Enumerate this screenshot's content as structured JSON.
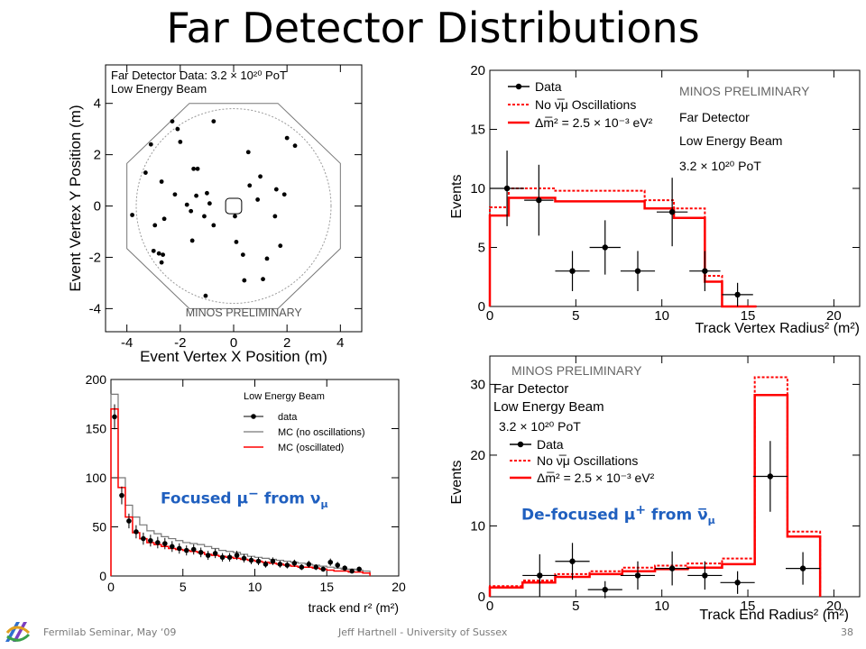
{
  "title": "Far Detector Distributions",
  "footer": {
    "left": "Fermilab Seminar, May ‘09",
    "center": "Jeff Hartnell - University of Sussex",
    "page": "38"
  },
  "captions": {
    "focused_pre": "Focused μ",
    "focused_sup": "−",
    "focused_mid": " from ν",
    "focused_sub": "μ",
    "defocused_pre": "De-focused μ",
    "defocused_sup": "+",
    "defocused_mid": " from ν̅",
    "defocused_sub": "μ"
  },
  "colors": {
    "data": "#000000",
    "mc_osc": "#ff0000",
    "mc_noosc": "#ff0000",
    "mc_grey": "#777777",
    "caption": "#1f5fbf"
  },
  "chart_data": [
    {
      "id": "vertex_xy",
      "type": "scatter",
      "xlabel": "Event Vertex X Position (m)",
      "ylabel": "Event Vertex Y Position (m)",
      "xlim": [
        -4.8,
        4.8
      ],
      "ylim": [
        -4.9,
        5.5
      ],
      "xticks": [
        -4,
        -2,
        0,
        2,
        4
      ],
      "yticks": [
        -4,
        -2,
        0,
        2,
        4
      ],
      "annotations": [
        "Far Detector Data: 3.2 × 10²⁰ PoT",
        "Low Energy Beam",
        "MINOS PRELIMINARY"
      ],
      "points": [
        [
          -2.3,
          3.3
        ],
        [
          -2.1,
          3.0
        ],
        [
          -0.75,
          3.3
        ],
        [
          -3.1,
          2.4
        ],
        [
          -2.0,
          2.5
        ],
        [
          0.55,
          2.1
        ],
        [
          2.0,
          2.65
        ],
        [
          2.3,
          2.35
        ],
        [
          -3.3,
          1.3
        ],
        [
          -1.5,
          1.45
        ],
        [
          -1.35,
          1.45
        ],
        [
          1.0,
          1.15
        ],
        [
          -2.7,
          0.95
        ],
        [
          -1.4,
          0.4
        ],
        [
          -1.0,
          0.5
        ],
        [
          -2.2,
          0.45
        ],
        [
          -1.75,
          0.05
        ],
        [
          -0.9,
          0.1
        ],
        [
          0.9,
          0.25
        ],
        [
          0.6,
          0.8
        ],
        [
          1.6,
          0.65
        ],
        [
          1.9,
          0.45
        ],
        [
          -3.8,
          -0.35
        ],
        [
          -2.6,
          -0.5
        ],
        [
          -1.6,
          -0.2
        ],
        [
          -1.1,
          -0.4
        ],
        [
          0.05,
          -0.4
        ],
        [
          1.55,
          -0.4
        ],
        [
          -2.95,
          -0.75
        ],
        [
          -0.75,
          -0.75
        ],
        [
          -1.55,
          -1.35
        ],
        [
          0.1,
          -1.4
        ],
        [
          1.75,
          -1.55
        ],
        [
          -3.0,
          -1.75
        ],
        [
          -2.8,
          -1.85
        ],
        [
          -2.65,
          -1.9
        ],
        [
          0.35,
          -1.9
        ],
        [
          1.25,
          -2.05
        ],
        [
          -2.7,
          -2.2
        ],
        [
          0.4,
          -2.9
        ],
        [
          -1.05,
          -3.5
        ],
        [
          1.1,
          -2.85
        ]
      ]
    },
    {
      "id": "track_vertex_radius",
      "type": "histogram",
      "xlabel": "Track Vertex Radius² (m²)",
      "ylabel": "Events",
      "xlim": [
        0,
        21.5
      ],
      "ylim": [
        0,
        20
      ],
      "xticks": [
        0,
        5,
        10,
        15,
        20
      ],
      "yticks": [
        0,
        5,
        10,
        15,
        20
      ],
      "legend": [
        "Data",
        "No ν̅μ Oscillations",
        "Δm̅² = 2.5 × 10⁻³ eV²"
      ],
      "annotations": [
        "MINOS PRELIMINARY",
        "Far Detector",
        "Low Energy Beam",
        "3.2 × 10²⁰ PoT"
      ],
      "bin_edges": [
        0,
        1.1,
        3.8,
        9.0,
        10.7,
        12.5,
        13.5,
        15.5
      ],
      "no_osc": [
        8.4,
        10.0,
        9.8,
        9.0,
        8.3,
        2.6,
        0
      ],
      "osc": [
        7.7,
        9.2,
        8.9,
        8.3,
        7.5,
        2.1,
        0
      ],
      "data": [
        [
          1.0,
          10.0,
          1.0,
          3.2
        ],
        [
          2.85,
          9.0,
          0.85,
          3.0
        ],
        [
          4.8,
          3.0,
          1.0,
          1.7
        ],
        [
          6.7,
          5.0,
          0.9,
          2.3
        ],
        [
          8.6,
          3.0,
          1.0,
          1.7
        ],
        [
          10.6,
          8.0,
          0.9,
          2.9
        ],
        [
          12.5,
          3.0,
          0.9,
          1.7
        ],
        [
          14.4,
          1.0,
          0.9,
          1.0
        ]
      ]
    },
    {
      "id": "track_end_radius_low",
      "type": "histogram",
      "xlabel": "track end r² (m²)",
      "ylabel": "",
      "xlim": [
        0,
        20
      ],
      "ylim": [
        0,
        200
      ],
      "xticks": [
        0,
        5,
        10,
        15,
        20
      ],
      "yticks": [
        0,
        50,
        100,
        150,
        200
      ],
      "legend_title": "Low Energy Beam",
      "legend": [
        "data",
        "MC (no oscillations)",
        "MC (oscillated)"
      ],
      "bin_width": 0.5,
      "mc_noosc": [
        185,
        100,
        72,
        60,
        52,
        46,
        43,
        40,
        38,
        36,
        34,
        33,
        32,
        30,
        28,
        26,
        25,
        24,
        22,
        20,
        19,
        18,
        17,
        16,
        15,
        14,
        13,
        12,
        11,
        10,
        9,
        8,
        7,
        7,
        6,
        5
      ],
      "mc_osc": [
        170,
        90,
        60,
        44,
        38,
        34,
        32,
        30,
        28,
        27,
        26,
        25,
        24,
        22,
        21,
        20,
        19,
        18,
        17,
        16,
        15,
        14,
        13,
        12,
        11,
        10,
        9,
        9,
        8,
        7,
        6,
        5,
        5,
        4,
        4,
        3
      ],
      "data_x": [
        0.25,
        0.75,
        1.25,
        1.75,
        2.25,
        2.75,
        3.25,
        3.75,
        4.25,
        4.75,
        5.25,
        5.75,
        6.25,
        6.75,
        7.25,
        7.75,
        8.25,
        8.75,
        9.25,
        9.75,
        10.25,
        10.75,
        11.25,
        11.75,
        12.25,
        12.75,
        13.25,
        13.75,
        14.25,
        14.75,
        15.25,
        15.75,
        16.25,
        16.75,
        17.25
      ],
      "data_y": [
        162,
        82,
        56,
        45,
        38,
        36,
        34,
        33,
        30,
        28,
        26,
        27,
        24,
        21,
        23,
        19,
        19,
        21,
        18,
        16,
        15,
        12,
        15,
        12,
        11,
        13,
        9,
        12,
        9,
        7,
        14,
        11,
        8,
        5,
        7
      ]
    },
    {
      "id": "track_end_radius",
      "type": "histogram",
      "xlabel": "Track End Radius² (m²)",
      "ylabel": "Events",
      "xlim": [
        0,
        21.5
      ],
      "ylim": [
        0,
        34
      ],
      "xticks": [
        0,
        5,
        10,
        15,
        20
      ],
      "yticks": [
        0,
        10,
        20,
        30
      ],
      "legend": [
        "Data",
        "No ν̅μ Oscillations",
        "Δm̅² = 2.5 × 10⁻³ eV²"
      ],
      "annotations": [
        "MINOS PRELIMINARY",
        "Far Detector",
        "Low Energy Beam",
        "3.2 × 10²⁰ PoT"
      ],
      "bin_edges": [
        0,
        1.9,
        3.8,
        5.8,
        7.7,
        9.6,
        11.5,
        13.5,
        15.4,
        17.3,
        19.2
      ],
      "no_osc": [
        1.5,
        2.3,
        3.2,
        3.6,
        4.1,
        4.4,
        4.7,
        5.4,
        31.0,
        9.2
      ],
      "osc": [
        1.3,
        2.0,
        2.8,
        3.2,
        3.6,
        3.9,
        4.1,
        4.6,
        28.5,
        8.5
      ],
      "data": [
        [
          2.9,
          3.0,
          1.0,
          3.0
        ],
        [
          4.8,
          5.0,
          1.0,
          2.6
        ],
        [
          6.7,
          1.0,
          1.0,
          1.2
        ],
        [
          8.6,
          3.0,
          1.0,
          2.0
        ],
        [
          10.6,
          4.0,
          1.0,
          2.4
        ],
        [
          12.5,
          3.0,
          1.0,
          2.0
        ],
        [
          14.4,
          2.0,
          1.0,
          1.6
        ],
        [
          16.3,
          17.0,
          1.0,
          5.0
        ],
        [
          18.2,
          4.0,
          1.0,
          2.3
        ]
      ]
    }
  ]
}
